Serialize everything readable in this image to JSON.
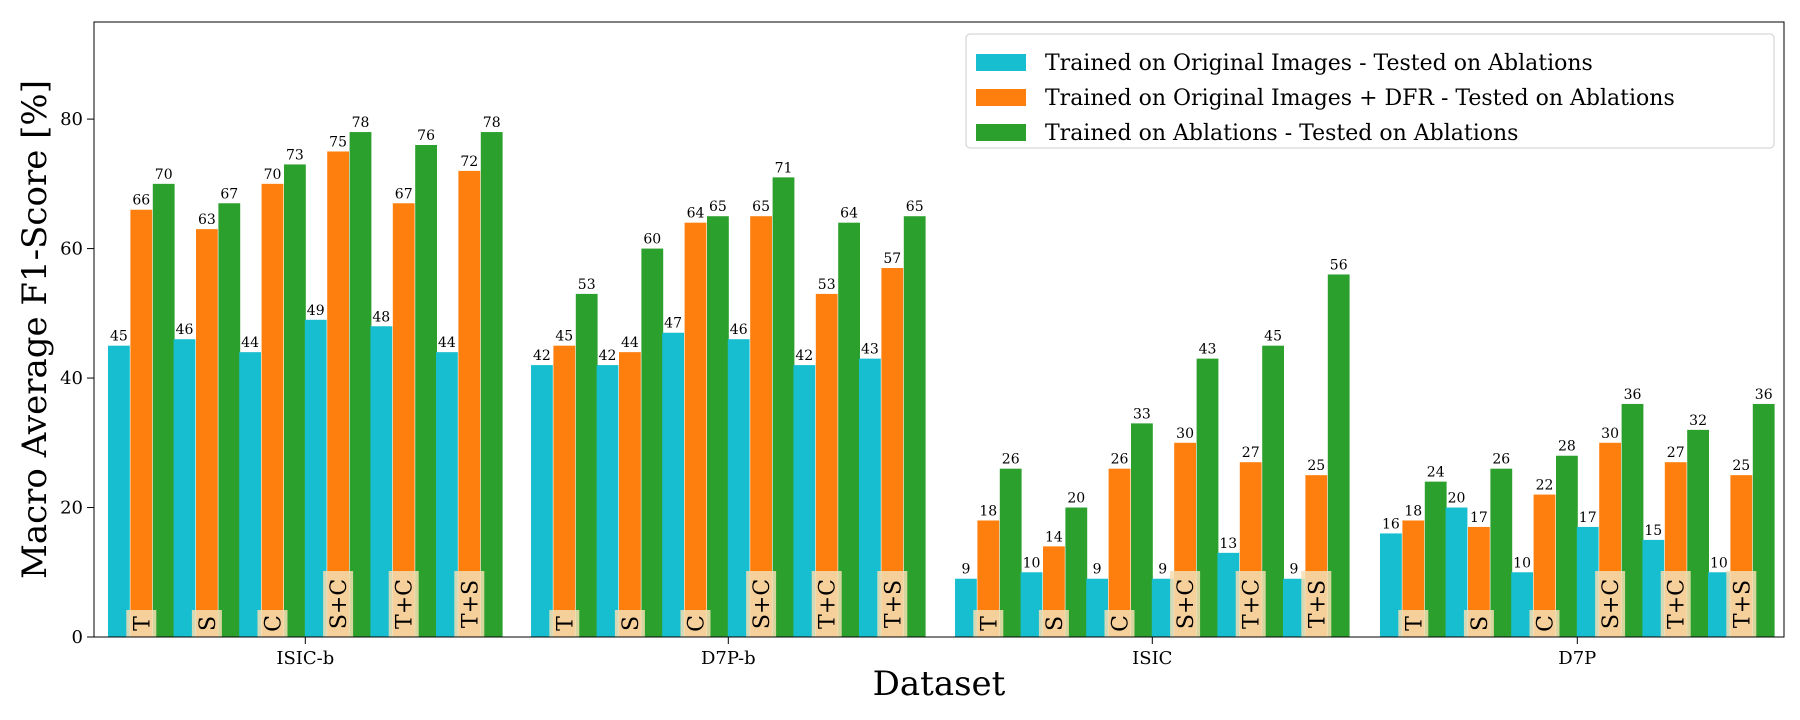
{
  "chart_data": {
    "type": "bar",
    "ylabel": "Macro Average F1-Score [%]",
    "xlabel": "Dataset",
    "ylim": [
      0,
      95
    ],
    "yticks": [
      0,
      20,
      40,
      60,
      80
    ],
    "grid": false,
    "legend_position": "top-right",
    "categories": [
      "ISIC-b",
      "D7P-b",
      "ISIC",
      "D7P"
    ],
    "ablations": [
      "T",
      "S",
      "C",
      "S+C",
      "T+C",
      "T+S"
    ],
    "series": [
      {
        "name": "Trained on Original Images - Tested on Ablations",
        "color": "#17becf",
        "values": [
          [
            45,
            46,
            44,
            49,
            48,
            44
          ],
          [
            42,
            42,
            47,
            46,
            42,
            43
          ],
          [
            9,
            10,
            9,
            9,
            13,
            9
          ],
          [
            16,
            20,
            10,
            17,
            15,
            10
          ]
        ]
      },
      {
        "name": "Trained on Original Images + DFR - Tested on Ablations",
        "color": "#ff7f0e",
        "values": [
          [
            66,
            63,
            70,
            75,
            67,
            72
          ],
          [
            45,
            44,
            64,
            65,
            53,
            57
          ],
          [
            18,
            14,
            26,
            30,
            27,
            25
          ],
          [
            18,
            17,
            22,
            30,
            27,
            25
          ]
        ]
      },
      {
        "name": "Trained on Ablations - Tested on Ablations",
        "color": "#2ca02c",
        "values": [
          [
            70,
            67,
            73,
            78,
            76,
            78
          ],
          [
            53,
            60,
            65,
            71,
            64,
            65
          ],
          [
            26,
            20,
            33,
            43,
            45,
            56
          ],
          [
            24,
            26,
            28,
            36,
            32,
            36
          ]
        ]
      }
    ],
    "ablation_label_color": "#f5deb3"
  }
}
